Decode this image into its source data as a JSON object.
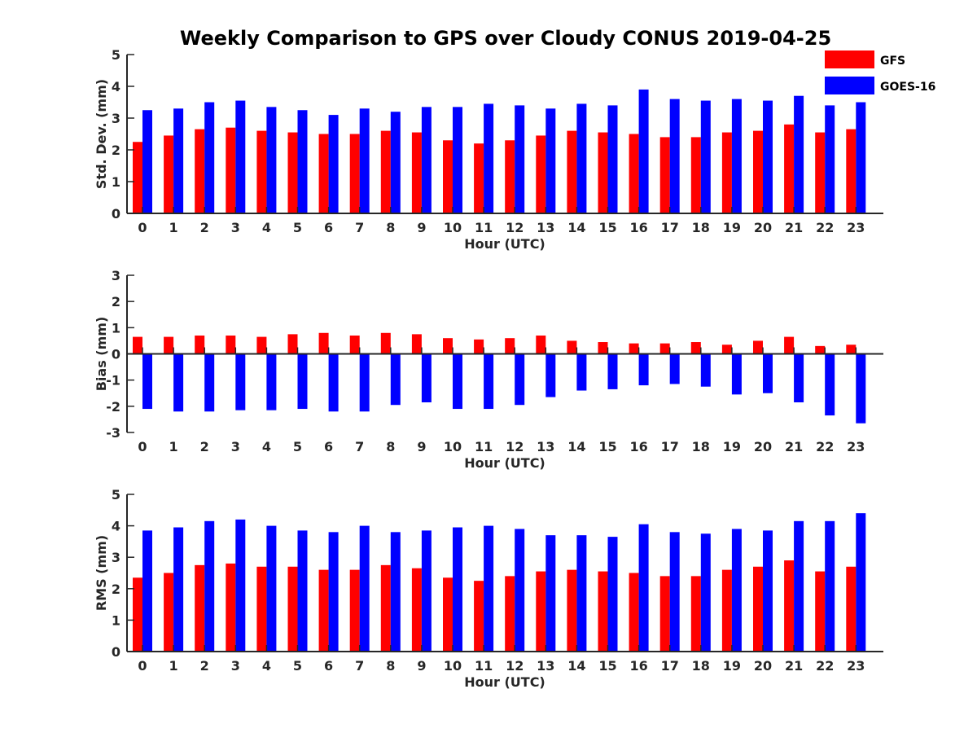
{
  "title": "Weekly Comparison to GPS over Cloudy CONUS 2019-04-25",
  "colors": {
    "GFS": "#ff0000",
    "GOES-16": "#0000ff",
    "axis": "#262626"
  },
  "legend": {
    "placement": "top-right",
    "entries": [
      "GFS",
      "GOES-16"
    ]
  },
  "chart_data": [
    {
      "type": "bar",
      "xlabel": "Hour (UTC)",
      "ylabel": "Std. Dev. (mm)",
      "ylim": [
        0,
        5
      ],
      "yticks": [
        0,
        1,
        2,
        3,
        4,
        5
      ],
      "categories": [
        "0",
        "1",
        "2",
        "3",
        "4",
        "5",
        "6",
        "7",
        "8",
        "9",
        "10",
        "11",
        "12",
        "13",
        "14",
        "15",
        "16",
        "17",
        "18",
        "19",
        "20",
        "21",
        "22",
        "23"
      ],
      "series": [
        {
          "name": "GFS",
          "values": [
            2.25,
            2.45,
            2.65,
            2.7,
            2.6,
            2.55,
            2.5,
            2.5,
            2.6,
            2.55,
            2.3,
            2.2,
            2.3,
            2.45,
            2.6,
            2.55,
            2.5,
            2.4,
            2.4,
            2.55,
            2.6,
            2.8,
            2.55,
            2.65
          ]
        },
        {
          "name": "GOES-16",
          "values": [
            3.25,
            3.3,
            3.5,
            3.55,
            3.35,
            3.25,
            3.1,
            3.3,
            3.2,
            3.35,
            3.35,
            3.45,
            3.4,
            3.3,
            3.45,
            3.4,
            3.9,
            3.6,
            3.55,
            3.6,
            3.55,
            3.7,
            3.4,
            3.5
          ]
        }
      ]
    },
    {
      "type": "bar",
      "xlabel": "Hour (UTC)",
      "ylabel": "Bias (mm)",
      "ylim": [
        -3,
        3
      ],
      "yticks": [
        -3,
        -2,
        -1,
        0,
        1,
        2,
        3
      ],
      "categories": [
        "0",
        "1",
        "2",
        "3",
        "4",
        "5",
        "6",
        "7",
        "8",
        "9",
        "10",
        "11",
        "12",
        "13",
        "14",
        "15",
        "16",
        "17",
        "18",
        "19",
        "20",
        "21",
        "22",
        "23"
      ],
      "series": [
        {
          "name": "GFS",
          "values": [
            0.65,
            0.65,
            0.7,
            0.7,
            0.65,
            0.75,
            0.8,
            0.7,
            0.8,
            0.75,
            0.6,
            0.55,
            0.6,
            0.7,
            0.5,
            0.45,
            0.4,
            0.4,
            0.45,
            0.35,
            0.5,
            0.65,
            0.3,
            0.35
          ]
        },
        {
          "name": "GOES-16",
          "values": [
            -2.1,
            -2.2,
            -2.2,
            -2.15,
            -2.15,
            -2.1,
            -2.2,
            -2.2,
            -1.95,
            -1.85,
            -2.1,
            -2.1,
            -1.95,
            -1.65,
            -1.4,
            -1.35,
            -1.2,
            -1.15,
            -1.25,
            -1.55,
            -1.5,
            -1.85,
            -2.35,
            -2.65
          ]
        }
      ]
    },
    {
      "type": "bar",
      "xlabel": "Hour (UTC)",
      "ylabel": "RMS (mm)",
      "ylim": [
        0,
        5
      ],
      "yticks": [
        0,
        1,
        2,
        3,
        4,
        5
      ],
      "categories": [
        "0",
        "1",
        "2",
        "3",
        "4",
        "5",
        "6",
        "7",
        "8",
        "9",
        "10",
        "11",
        "12",
        "13",
        "14",
        "15",
        "16",
        "17",
        "18",
        "19",
        "20",
        "21",
        "22",
        "23"
      ],
      "series": [
        {
          "name": "GFS",
          "values": [
            2.35,
            2.5,
            2.75,
            2.8,
            2.7,
            2.7,
            2.6,
            2.6,
            2.75,
            2.65,
            2.35,
            2.25,
            2.4,
            2.55,
            2.6,
            2.55,
            2.5,
            2.4,
            2.4,
            2.6,
            2.7,
            2.9,
            2.55,
            2.7
          ]
        },
        {
          "name": "GOES-16",
          "values": [
            3.85,
            3.95,
            4.15,
            4.2,
            4.0,
            3.85,
            3.8,
            4.0,
            3.8,
            3.85,
            3.95,
            4.0,
            3.9,
            3.7,
            3.7,
            3.65,
            4.05,
            3.8,
            3.75,
            3.9,
            3.85,
            4.15,
            4.15,
            4.4
          ]
        }
      ]
    }
  ]
}
